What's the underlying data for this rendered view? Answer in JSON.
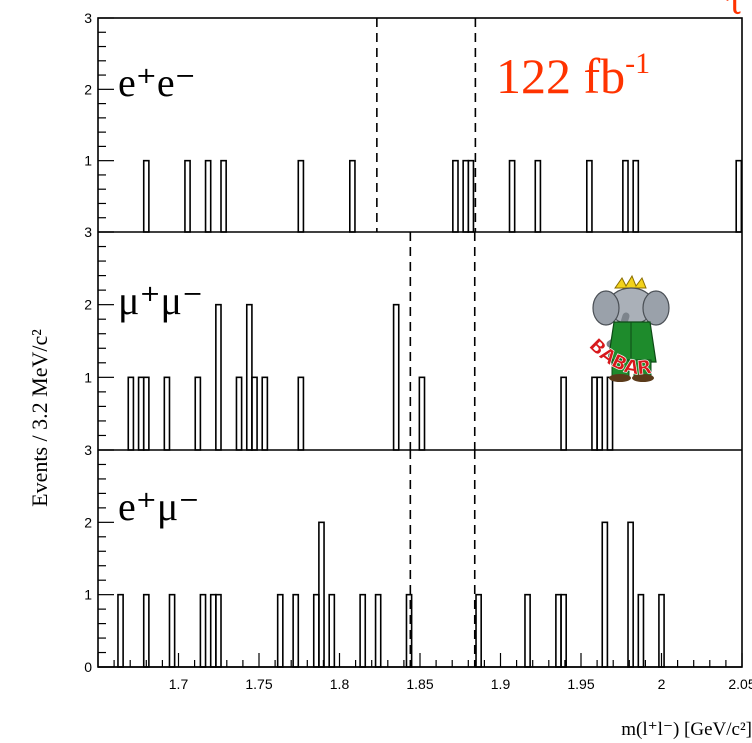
{
  "chart_data": {
    "type": "bar",
    "subtype": "stacked-panel-histogram",
    "title": "",
    "luminosity": {
      "value": "122 fb",
      "exponent": "-1"
    },
    "top_right_marker": "τ",
    "xlabel": "m(l⁺l⁻) [GeV/c²]",
    "ylabel": "Events / 3.2 MeV/c²",
    "xlim": [
      1.65,
      2.05
    ],
    "bin_width": 0.0032,
    "x_ticks": [
      "1.7",
      "1.75",
      "1.8",
      "1.85",
      "1.9",
      "1.95",
      "2",
      "2.05"
    ],
    "x_tick_values": [
      1.7,
      1.75,
      1.8,
      1.85,
      1.9,
      1.95,
      2.0,
      2.05
    ],
    "logo": "BABAR",
    "panels": [
      {
        "name": "e+e-",
        "label": "e⁺e⁻",
        "ylim": [
          0,
          3
        ],
        "y_ticks": [
          "1",
          "2",
          "3"
        ],
        "signal_window": [
          1.8232,
          1.8844
        ],
        "bins": [
          [
            1.6784,
            1
          ],
          [
            1.704,
            1
          ],
          [
            1.7168,
            1
          ],
          [
            1.7264,
            1
          ],
          [
            1.7744,
            1
          ],
          [
            1.8064,
            1
          ],
          [
            1.8704,
            1
          ],
          [
            1.8768,
            1
          ],
          [
            1.88,
            1
          ],
          [
            1.9056,
            1
          ],
          [
            1.9216,
            1
          ],
          [
            1.9536,
            1
          ],
          [
            1.976,
            1
          ],
          [
            1.9824,
            1
          ],
          [
            2.0464,
            1
          ]
        ]
      },
      {
        "name": "mu+mu-",
        "label": "μ⁺μ⁻",
        "ylim": [
          0,
          3
        ],
        "y_ticks": [
          "1",
          "2",
          "3"
        ],
        "signal_window": [
          1.844,
          1.884
        ],
        "bins": [
          [
            1.6688,
            1
          ],
          [
            1.6752,
            1
          ],
          [
            1.6784,
            1
          ],
          [
            1.6912,
            1
          ],
          [
            1.7104,
            1
          ],
          [
            1.7232,
            2
          ],
          [
            1.736,
            1
          ],
          [
            1.7424,
            2
          ],
          [
            1.7456,
            1
          ],
          [
            1.752,
            1
          ],
          [
            1.7744,
            1
          ],
          [
            1.8336,
            2
          ],
          [
            1.8496,
            1
          ],
          [
            1.9376,
            1
          ],
          [
            1.9568,
            1
          ],
          [
            1.96,
            1
          ],
          [
            1.9664,
            1
          ]
        ]
      },
      {
        "name": "e+mu-",
        "label": "e⁺μ⁻",
        "ylim": [
          0,
          3
        ],
        "y_ticks": [
          "1",
          "2",
          "3"
        ],
        "signal_window": [
          1.844,
          1.884
        ],
        "bins": [
          [
            1.6624,
            1
          ],
          [
            1.6784,
            1
          ],
          [
            1.6944,
            1
          ],
          [
            1.7136,
            1
          ],
          [
            1.72,
            1
          ],
          [
            1.7232,
            1
          ],
          [
            1.7616,
            1
          ],
          [
            1.7712,
            1
          ],
          [
            1.784,
            1
          ],
          [
            1.7872,
            2
          ],
          [
            1.7936,
            1
          ],
          [
            1.8128,
            1
          ],
          [
            1.8224,
            1
          ],
          [
            1.8416,
            1
          ],
          [
            1.8848,
            1
          ],
          [
            1.9152,
            1
          ],
          [
            1.9344,
            1
          ],
          [
            1.9376,
            1
          ],
          [
            1.9632,
            2
          ],
          [
            1.9792,
            2
          ],
          [
            1.9856,
            1
          ],
          [
            1.9984,
            1
          ]
        ]
      }
    ]
  }
}
